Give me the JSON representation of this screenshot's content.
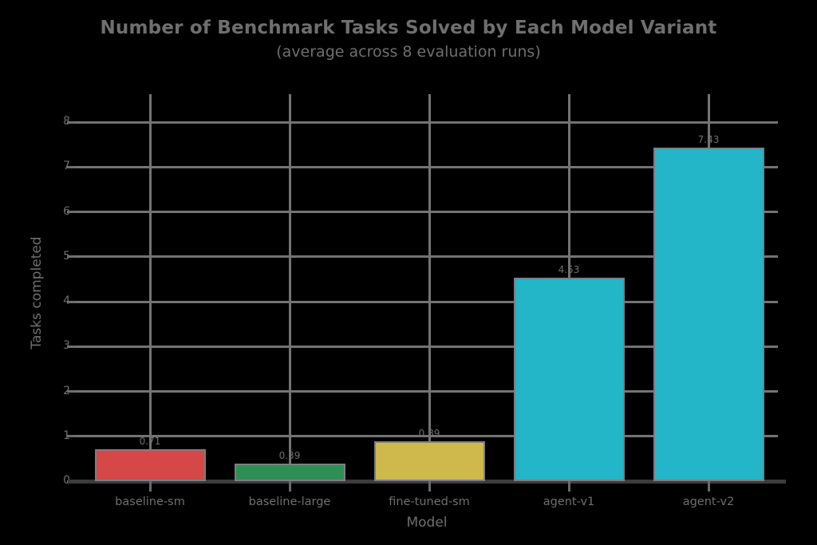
{
  "chart_data": {
    "type": "bar",
    "title": "Number of Benchmark Tasks Solved by Each Model Variant",
    "subtitle": "(average across 8 evaluation runs)",
    "xlabel": "Model",
    "ylabel": "Tasks completed",
    "categories": [
      "baseline-sm",
      "baseline-large",
      "fine-tuned-sm",
      "agent-v1",
      "agent-v2"
    ],
    "values": [
      0.71,
      0.39,
      0.89,
      4.53,
      7.43
    ],
    "value_labels": [
      "0.71",
      "0.39",
      "0.89",
      "4.53",
      "7.43"
    ],
    "bar_colors": [
      "#d64747",
      "#2e8f55",
      "#cfb94d",
      "#22b6c8",
      "#22b6c8"
    ],
    "yticks": [
      0,
      1,
      2,
      3,
      4,
      5,
      6,
      7,
      8
    ],
    "ytick_labels": [
      "0",
      "1",
      "2",
      "3",
      "4",
      "5",
      "6",
      "7",
      "8"
    ],
    "ylim": [
      0,
      8.6
    ],
    "grid": "both",
    "legend": "none",
    "colors": {
      "background": "#000000",
      "text": "#6f6f6f",
      "grid": "#737373",
      "bottom_spine": "#3c3c3c",
      "bar_edge": "#7d7d85"
    }
  }
}
